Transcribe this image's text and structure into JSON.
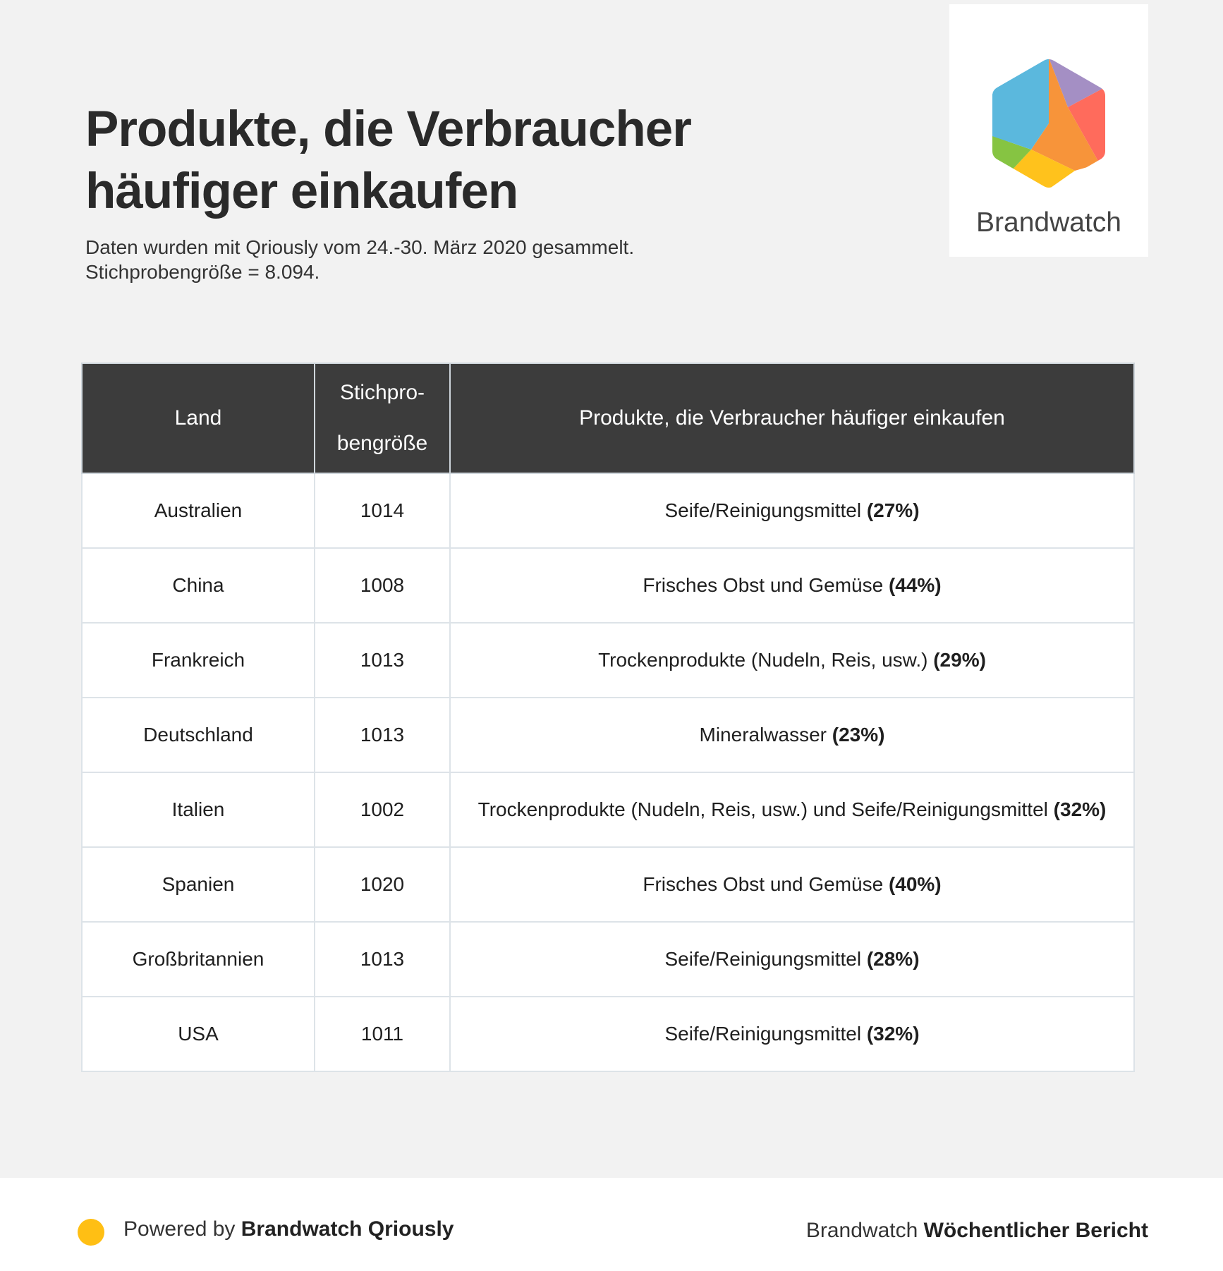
{
  "header": {
    "title": "Produkte, die Verbraucher häufiger einkaufen",
    "subtitle_line1": "Daten wurden mit Qriously vom 24.-30. März 2020 gesammelt.",
    "subtitle_line2": "Stichprobengröße = 8.094."
  },
  "logo": {
    "text": "Brandwatch",
    "colors": [
      "#5bb8dd",
      "#a48fc4",
      "#ff6b5c",
      "#f7943a",
      "#ffc21c",
      "#86c442"
    ]
  },
  "table": {
    "headers": {
      "land": "Land",
      "sample_line1": "Stichpro-",
      "sample_line2": "bengröße",
      "products": "Produkte, die Verbraucher häufiger einkaufen"
    },
    "rows": [
      {
        "land": "Australien",
        "size": "1014",
        "product": "Seife/Reinigungsmittel ",
        "percent": "(27%)"
      },
      {
        "land": "China",
        "size": "1008",
        "product": "Frisches Obst und Gemüse ",
        "percent": "(44%)"
      },
      {
        "land": "Frankreich",
        "size": "1013",
        "product": "Trockenprodukte (Nudeln, Reis, usw.) ",
        "percent": "(29%)"
      },
      {
        "land": "Deutschland",
        "size": "1013",
        "product": "Mineralwasser ",
        "percent": "(23%)"
      },
      {
        "land": "Italien",
        "size": "1002",
        "product": "Trockenprodukte (Nudeln, Reis, usw.) und Seife/Reinigungsmittel ",
        "percent": "(32%)"
      },
      {
        "land": "Spanien",
        "size": "1020",
        "product": "Frisches Obst und Gemüse ",
        "percent": "(40%)"
      },
      {
        "land": "Großbritannien",
        "size": "1013",
        "product": "Seife/Reinigungsmittel ",
        "percent": "(28%)"
      },
      {
        "land": "USA",
        "size": "1011",
        "product": "Seife/Reinigungsmittel ",
        "percent": "(32%)"
      }
    ]
  },
  "footer": {
    "powered_prefix": "Powered by ",
    "powered_brand": "Brandwatch Qriously",
    "report_prefix": "Brandwatch ",
    "report_name": "Wöchentlicher Bericht",
    "dot_color": "#ffbf14"
  }
}
